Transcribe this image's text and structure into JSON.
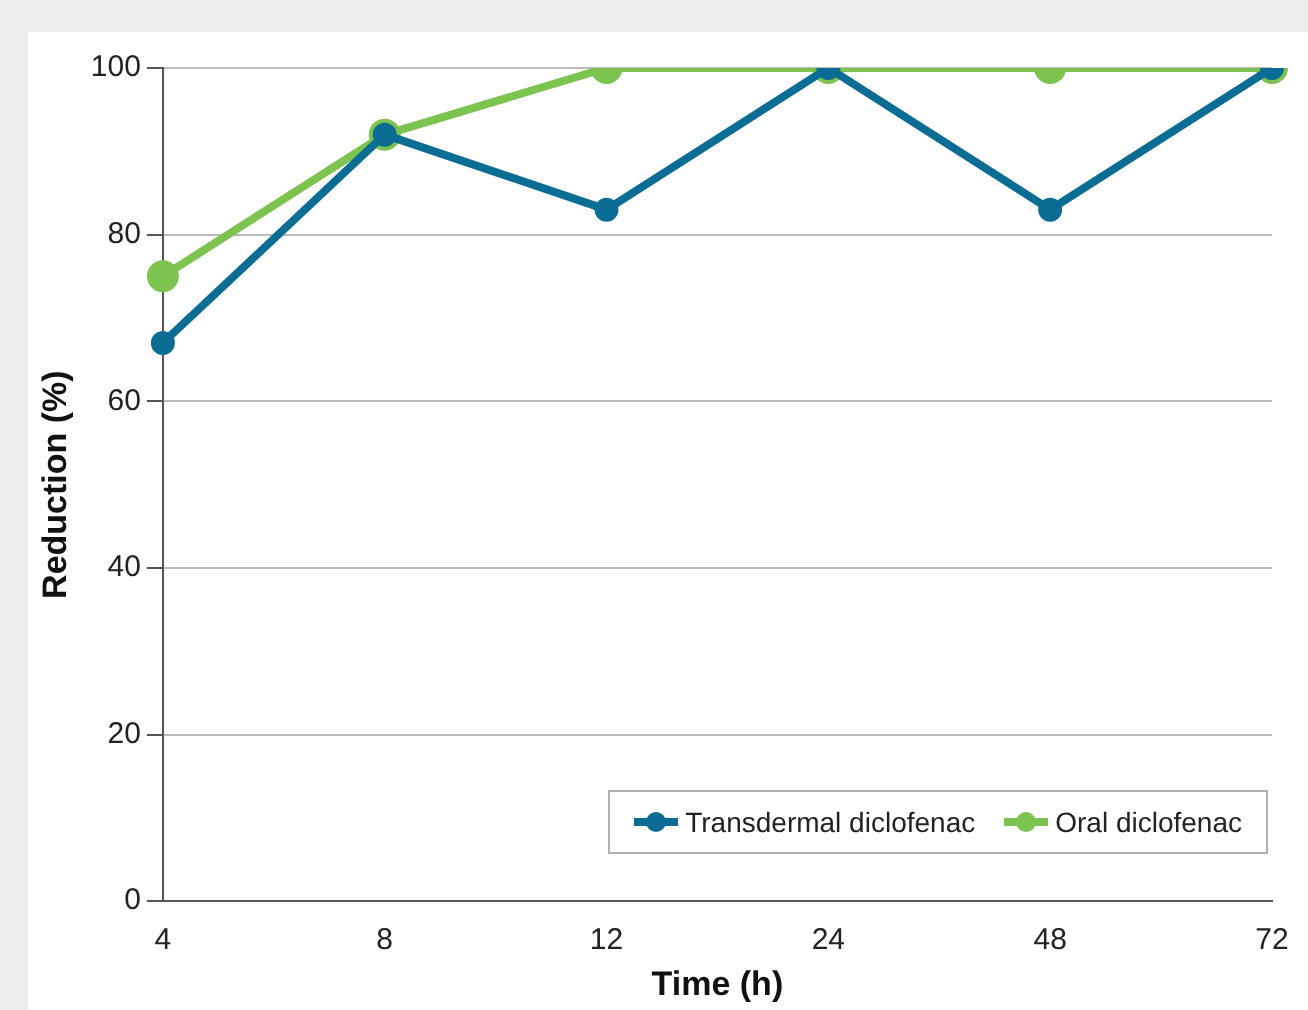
{
  "chart_data": {
    "type": "line",
    "xlabel": "Time (h)",
    "ylabel": "Reduction (%)",
    "categories": [
      "4",
      "8",
      "12",
      "24",
      "48",
      "72"
    ],
    "series": [
      {
        "name": "Transdermal diclofenac",
        "color": "#0b6d94",
        "values": [
          67,
          92,
          83,
          100,
          83,
          100
        ]
      },
      {
        "name": "Oral diclofenac",
        "color": "#7cc350",
        "values": [
          75,
          92,
          100,
          100,
          100,
          100
        ]
      }
    ],
    "ylim": [
      0,
      100
    ],
    "yticks": [
      0,
      20,
      40,
      60,
      80,
      100
    ],
    "grid": "y",
    "legend": "bottom right",
    "marker": "circle",
    "line_style": "solid"
  }
}
